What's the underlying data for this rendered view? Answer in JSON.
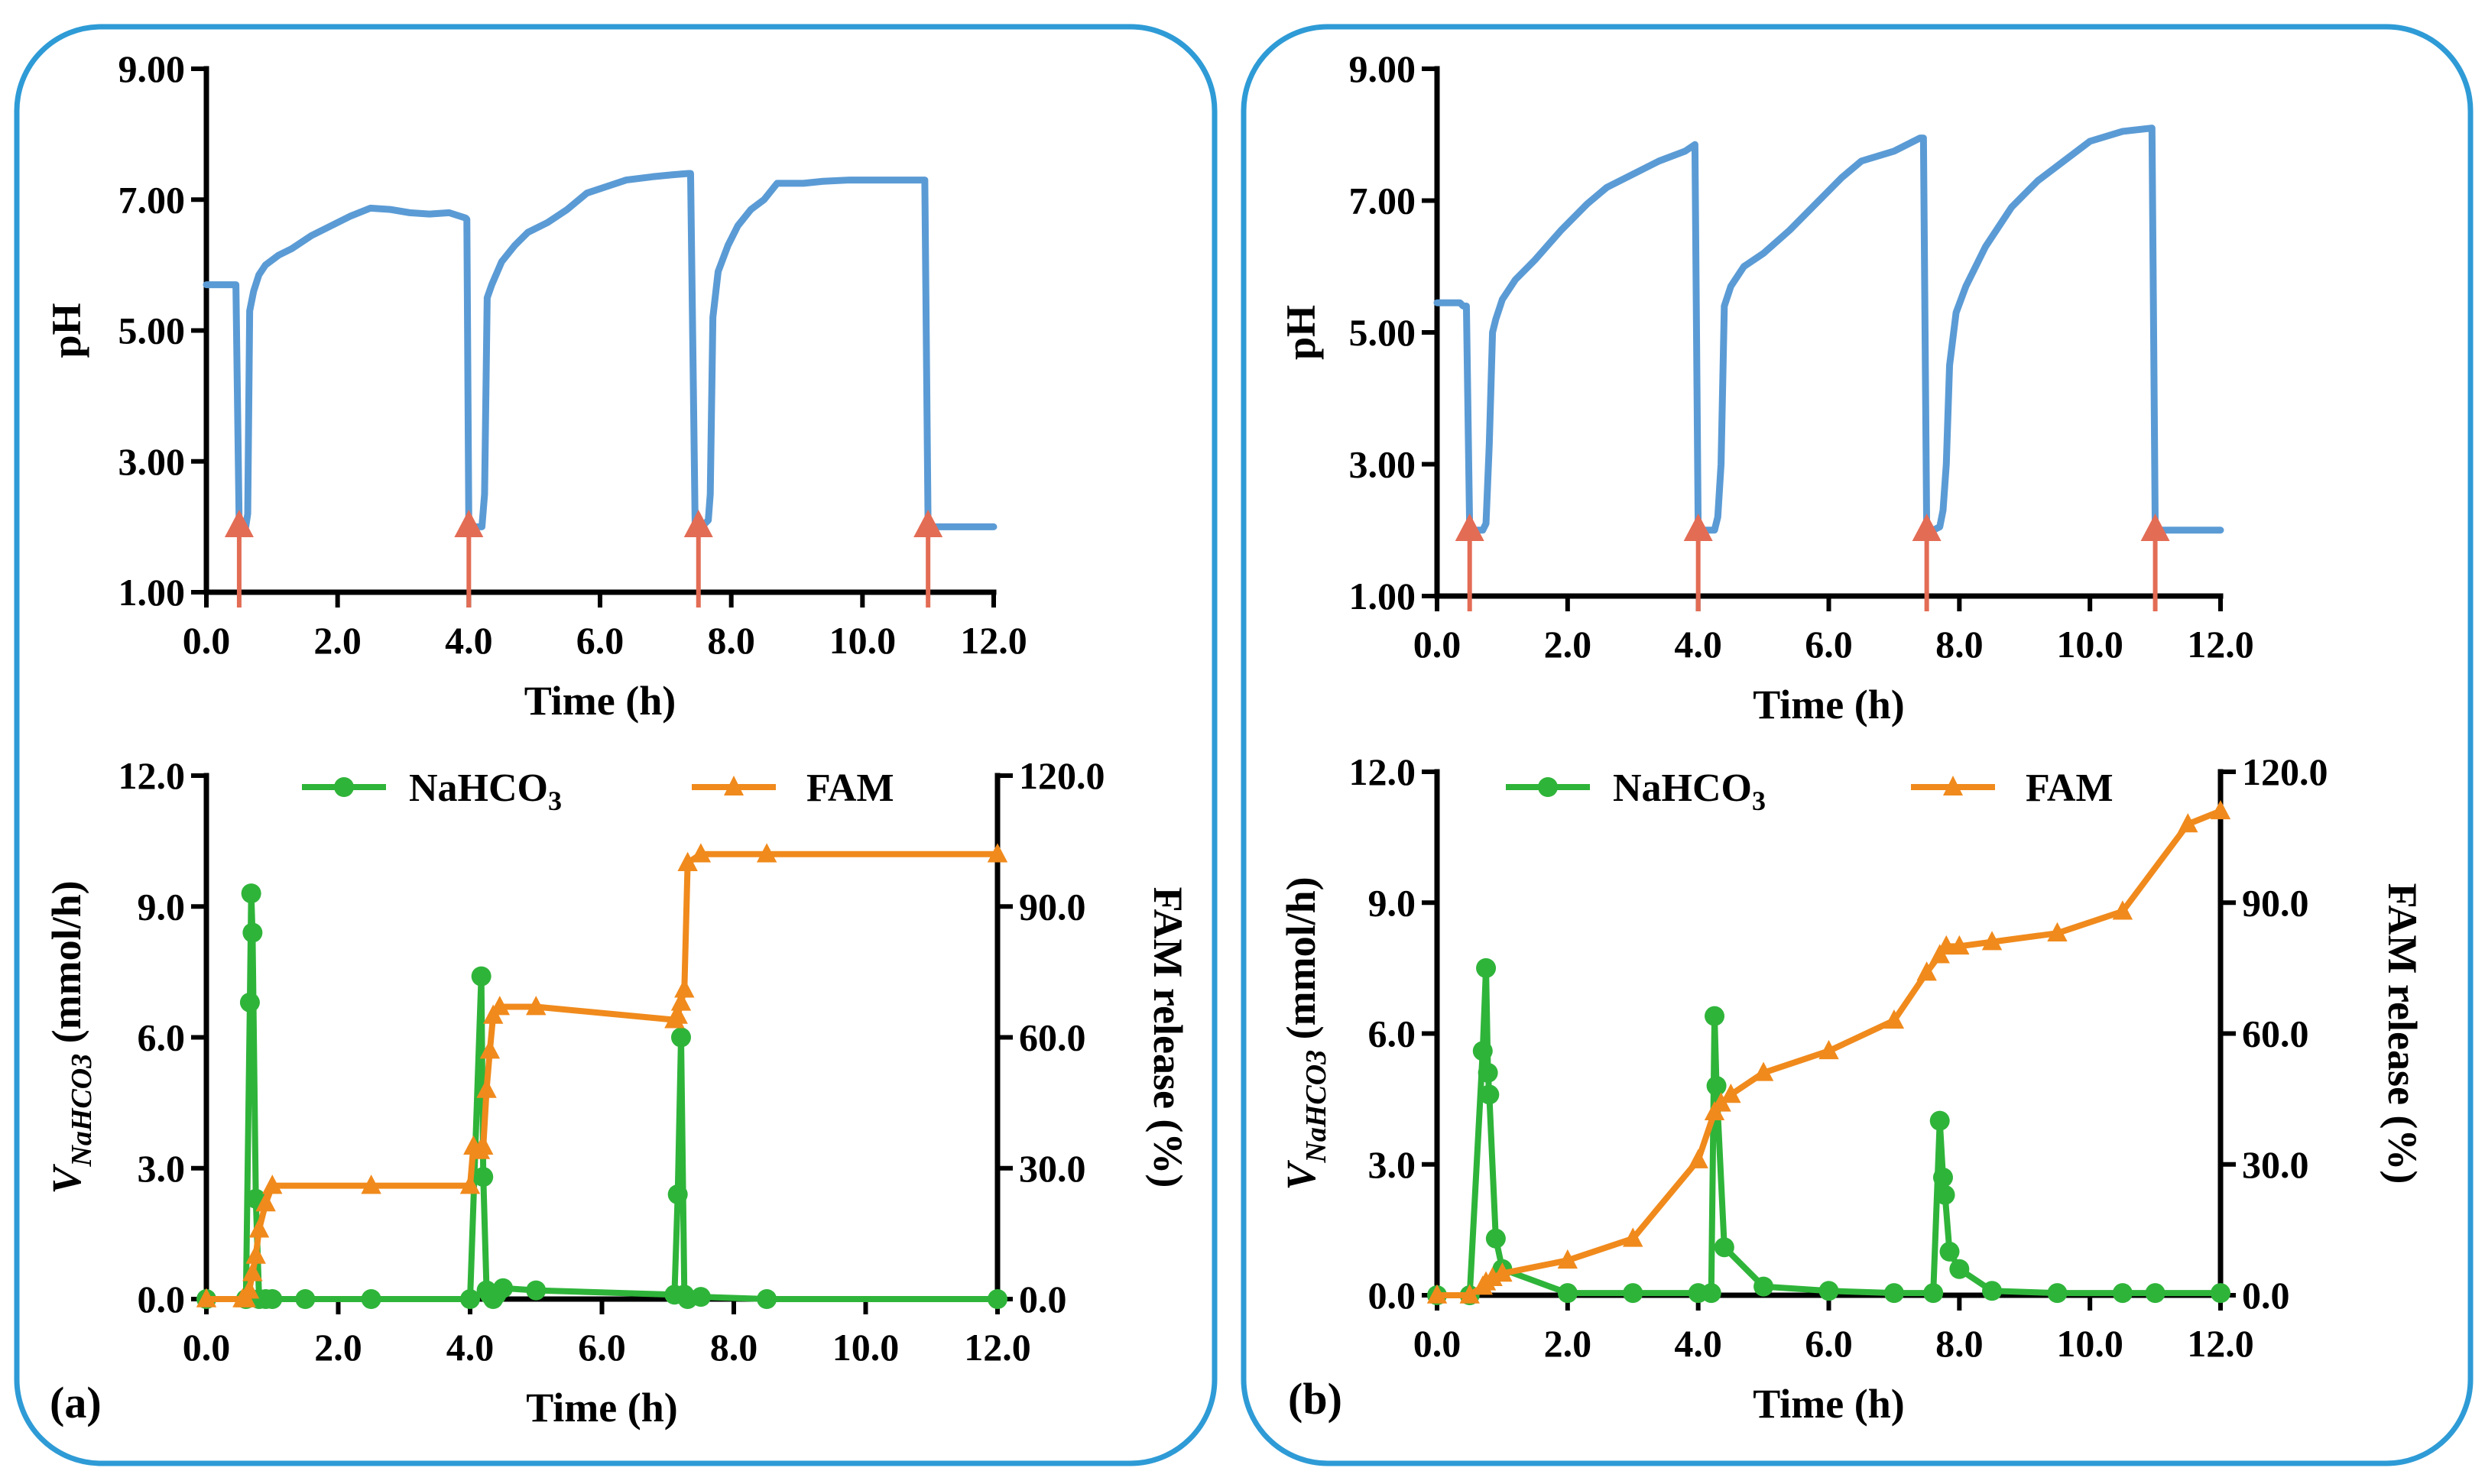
{
  "colors": {
    "frame": "#2e9bd6",
    "ph_line": "#5b9bd5",
    "arrow": "#e36c55",
    "nahco3": "#2fb43a",
    "fam": "#f08a1c"
  },
  "chart_data": [
    {
      "id": "a_ph",
      "panel": "a",
      "type": "line",
      "xlabel": "Time (h)",
      "ylabel": "pH",
      "xlim": [
        0,
        12
      ],
      "ylim": [
        1,
        9
      ],
      "xticks": [
        "0.0",
        "2.0",
        "4.0",
        "6.0",
        "8.0",
        "10.0",
        "12.0"
      ],
      "yticks": [
        "1.00",
        "3.00",
        "5.00",
        "7.00",
        "9.00"
      ],
      "arrows_x": [
        0.5,
        4.0,
        7.5,
        11.0
      ],
      "series": [
        {
          "name": "pH",
          "x": [
            0,
            0.4,
            0.42,
            0.45,
            0.5,
            0.55,
            0.6,
            0.63,
            0.66,
            0.72,
            0.8,
            0.9,
            1.1,
            1.3,
            1.6,
            1.9,
            2.2,
            2.5,
            2.8,
            3.1,
            3.4,
            3.7,
            3.95,
            3.97,
            4.0,
            4.1,
            4.2,
            4.24,
            4.28,
            4.35,
            4.5,
            4.7,
            4.9,
            5.2,
            5.5,
            5.8,
            6.1,
            6.4,
            6.8,
            7.1,
            7.35,
            7.38,
            7.45,
            7.55,
            7.65,
            7.68,
            7.72,
            7.8,
            7.95,
            8.1,
            8.3,
            8.5,
            8.7,
            8.9,
            9.1,
            9.4,
            9.8,
            10.3,
            10.7,
            10.95,
            11.0,
            11.2,
            11.6,
            12.0
          ],
          "y": [
            5.7,
            5.7,
            5.7,
            5.7,
            2.0,
            2.0,
            2.0,
            2.2,
            5.3,
            5.6,
            5.85,
            6.0,
            6.15,
            6.25,
            6.45,
            6.6,
            6.75,
            6.87,
            6.85,
            6.8,
            6.78,
            6.8,
            6.72,
            6.7,
            2.0,
            2.0,
            2.0,
            2.5,
            5.5,
            5.7,
            6.05,
            6.3,
            6.5,
            6.65,
            6.85,
            7.1,
            7.2,
            7.3,
            7.35,
            7.38,
            7.4,
            7.4,
            2.0,
            2.0,
            2.1,
            2.5,
            5.2,
            5.9,
            6.3,
            6.6,
            6.85,
            7.0,
            7.25,
            7.25,
            7.25,
            7.28,
            7.3,
            7.3,
            7.3,
            7.3,
            2.0,
            2.0,
            2.0,
            2.0
          ]
        }
      ]
    },
    {
      "id": "a_release",
      "panel": "a",
      "panel_label": "(a)",
      "type": "line",
      "xlabel": "Time (h)",
      "ylabel": "V",
      "ylabel_sub": "NaHCO3",
      "ylabel_units": " (mmol/h)",
      "y2label": "FAM release (%)",
      "xlim": [
        0,
        12
      ],
      "ylim": [
        0,
        12
      ],
      "y2lim": [
        0,
        120
      ],
      "xticks": [
        "0.0",
        "2.0",
        "4.0",
        "6.0",
        "8.0",
        "10.0",
        "12.0"
      ],
      "yticks": [
        "0.0",
        "3.0",
        "6.0",
        "9.0",
        "12.0"
      ],
      "y2ticks": [
        "0.0",
        "30.0",
        "60.0",
        "90.0",
        "120.0"
      ],
      "legend": [
        "NaHCO",
        "3",
        "FAM"
      ],
      "series": [
        {
          "name": "NaHCO3",
          "axis": "left",
          "x": [
            0,
            0.6,
            0.66,
            0.68,
            0.7,
            0.75,
            0.8,
            0.9,
            1.0,
            1.5,
            2.5,
            4.0,
            4.17,
            4.2,
            4.25,
            4.3,
            4.35,
            4.4,
            4.5,
            5.0,
            7.1,
            7.15,
            7.2,
            7.25,
            7.3,
            7.5,
            8.5,
            12.0
          ],
          "y": [
            0.0,
            0.0,
            6.8,
            9.3,
            8.4,
            2.3,
            0.0,
            0.0,
            0.0,
            0.0,
            0.0,
            0.0,
            7.4,
            2.8,
            0.2,
            0.1,
            0.0,
            0.1,
            0.25,
            0.2,
            0.1,
            2.4,
            6.0,
            0.1,
            0.0,
            0.05,
            0.0,
            0.0
          ]
        },
        {
          "name": "FAM",
          "axis": "right",
          "x": [
            0,
            0.55,
            0.6,
            0.65,
            0.7,
            0.75,
            0.8,
            0.9,
            1.0,
            2.5,
            4.0,
            4.05,
            4.15,
            4.2,
            4.25,
            4.3,
            4.35,
            4.45,
            5.0,
            7.1,
            7.15,
            7.2,
            7.25,
            7.3,
            7.5,
            8.5,
            12.0
          ],
          "y": [
            0,
            0,
            0,
            2,
            6,
            10,
            16,
            22,
            26,
            26,
            26,
            35,
            34,
            35,
            48,
            57,
            65,
            67,
            67,
            64,
            65,
            68,
            71,
            100,
            102,
            102,
            102
          ]
        }
      ]
    },
    {
      "id": "b_ph",
      "panel": "b",
      "type": "line",
      "xlabel": "Time (h)",
      "ylabel": "pH",
      "xlim": [
        0,
        12
      ],
      "ylim": [
        1,
        9
      ],
      "xticks": [
        "0.0",
        "2.0",
        "4.0",
        "6.0",
        "8.0",
        "10.0",
        "12.0"
      ],
      "yticks": [
        "1.00",
        "3.00",
        "5.00",
        "7.00",
        "9.00"
      ],
      "arrows_x": [
        0.5,
        4.0,
        7.5,
        11.0
      ],
      "series": [
        {
          "name": "pH",
          "x": [
            0,
            0.35,
            0.4,
            0.45,
            0.5,
            0.6,
            0.7,
            0.75,
            0.8,
            0.85,
            0.9,
            1.0,
            1.2,
            1.5,
            1.9,
            2.3,
            2.6,
            3.0,
            3.4,
            3.8,
            3.95,
            4.0,
            4.1,
            4.25,
            4.3,
            4.35,
            4.4,
            4.5,
            4.7,
            5.0,
            5.4,
            5.8,
            6.2,
            6.5,
            7.0,
            7.4,
            7.45,
            7.5,
            7.6,
            7.7,
            7.75,
            7.8,
            7.85,
            7.95,
            8.1,
            8.4,
            8.8,
            9.2,
            9.6,
            10.0,
            10.5,
            10.95,
            11.0,
            11.3,
            11.6,
            12.0
          ],
          "y": [
            5.45,
            5.45,
            5.4,
            5.4,
            2.0,
            2.0,
            2.0,
            2.1,
            3.3,
            5.0,
            5.2,
            5.5,
            5.8,
            6.1,
            6.55,
            6.95,
            7.2,
            7.4,
            7.6,
            7.75,
            7.85,
            2.0,
            2.0,
            2.0,
            2.2,
            3.0,
            5.4,
            5.7,
            6.0,
            6.2,
            6.55,
            6.95,
            7.35,
            7.6,
            7.75,
            7.95,
            7.95,
            2.0,
            2.0,
            2.05,
            2.3,
            3.0,
            4.5,
            5.3,
            5.7,
            6.3,
            6.9,
            7.3,
            7.6,
            7.9,
            8.05,
            8.1,
            2.0,
            2.0,
            2.0,
            2.0
          ]
        }
      ]
    },
    {
      "id": "b_release",
      "panel": "b",
      "panel_label": "(b)",
      "type": "line",
      "xlabel": "Time (h)",
      "ylabel": "V",
      "ylabel_sub": "NaHCO3",
      "ylabel_units": " (mmol/h)",
      "y2label": "FAM release (%)",
      "xlim": [
        0,
        12
      ],
      "ylim": [
        0,
        12
      ],
      "y2lim": [
        0,
        120
      ],
      "xticks": [
        "0.0",
        "2.0",
        "4.0",
        "6.0",
        "8.0",
        "10.0",
        "12.0"
      ],
      "yticks": [
        "0.0",
        "3.0",
        "6.0",
        "9.0",
        "12.0"
      ],
      "y2ticks": [
        "0.0",
        "30.0",
        "60.0",
        "90.0",
        "120.0"
      ],
      "legend": [
        "NaHCO",
        "3",
        "FAM"
      ],
      "series": [
        {
          "name": "NaHCO3",
          "axis": "left",
          "x": [
            0,
            0.5,
            0.7,
            0.75,
            0.78,
            0.8,
            0.9,
            1.0,
            2.0,
            3.0,
            4.0,
            4.2,
            4.25,
            4.28,
            4.4,
            5.0,
            6.0,
            7.0,
            7.6,
            7.7,
            7.75,
            7.78,
            7.85,
            8.0,
            8.5,
            9.5,
            10.5,
            11.0,
            12.0
          ],
          "y": [
            0,
            0,
            5.6,
            7.5,
            5.1,
            4.6,
            1.3,
            0.6,
            0.05,
            0.05,
            0.05,
            0.05,
            6.4,
            4.8,
            1.1,
            0.2,
            0.1,
            0.05,
            0.05,
            4.0,
            2.7,
            2.3,
            1.0,
            0.6,
            0.1,
            0.05,
            0.05,
            0.05,
            0.05
          ]
        },
        {
          "name": "FAM",
          "axis": "right",
          "x": [
            0,
            0.5,
            0.7,
            0.75,
            0.85,
            1.0,
            2.0,
            3.0,
            4.0,
            4.25,
            4.35,
            4.5,
            5.0,
            6.0,
            7.0,
            7.5,
            7.7,
            7.8,
            8.0,
            8.5,
            9.5,
            10.5,
            11.5,
            12.0
          ],
          "y": [
            0,
            0,
            2,
            3,
            4,
            5,
            8,
            13,
            31,
            42,
            44,
            46,
            51,
            56,
            63,
            74,
            78,
            80,
            80,
            81,
            83,
            88,
            108,
            111
          ]
        }
      ]
    }
  ]
}
